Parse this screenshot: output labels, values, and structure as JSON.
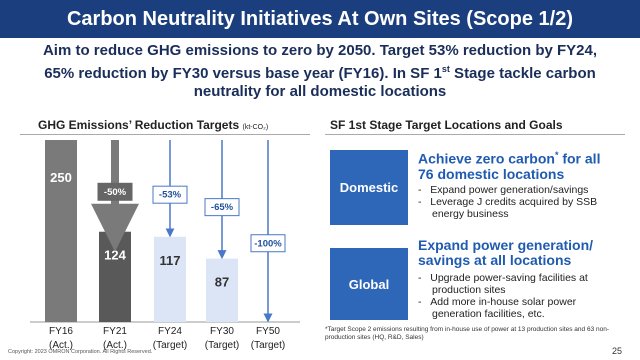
{
  "header": {
    "title": "Carbon Neutrality Initiatives At Own Sites (Scope 1/2)",
    "subtitle_parts": [
      "Aim to reduce GHG emissions to zero by 2050. Target 53% reduction by FY24, 65% reduction by FY30 versus base year (FY16). In SF 1",
      "st",
      " Stage tackle carbon neutrality for all domestic locations"
    ]
  },
  "chart_data": {
    "type": "bar",
    "title": "GHG Emissions’ Reduction Targets",
    "unit": "(kt-CO₂)",
    "categories": [
      "FY16",
      "FY21",
      "FY24",
      "FY30",
      "FY50"
    ],
    "category_notes": [
      "(Act.)",
      "(Act.)",
      "(Target)",
      "(Target)",
      "(Target)"
    ],
    "values": [
      250,
      124,
      117,
      87,
      null
    ],
    "reductions": [
      null,
      "-50%",
      "-53%",
      "-65%",
      "-100%"
    ],
    "colors": [
      "#7a7a7a",
      "#595959",
      "#dbe5f6",
      "#dbe5f6",
      "#dbe5f6"
    ],
    "ylim": [
      0,
      250
    ]
  },
  "goals": {
    "title": "SF 1st Stage Target Locations and Goals",
    "items": [
      {
        "label": "Domestic",
        "heading_parts": [
          "Achieve zero carbon",
          "*",
          " for all 76 domestic locations"
        ],
        "bullets": [
          "Expand power generation/savings",
          "Leverage J credits acquired by SSB energy business"
        ]
      },
      {
        "label": "Global",
        "heading_parts": [
          "Expand power generation/ savings at all locations"
        ],
        "bullets": [
          "Upgrade power-saving facilities at production sites",
          "Add more in-house solar power generation facilities, etc."
        ]
      }
    ],
    "footnote": "*Target Scope 2 emissions resulting from in-house use of power at 13 production sites and 63 non-production sites (HQ, R&D, Sales)"
  },
  "footer": {
    "copyright": "Copyright: 2023 OMRON Corporation. All Rights Reserved.",
    "page": "25"
  }
}
